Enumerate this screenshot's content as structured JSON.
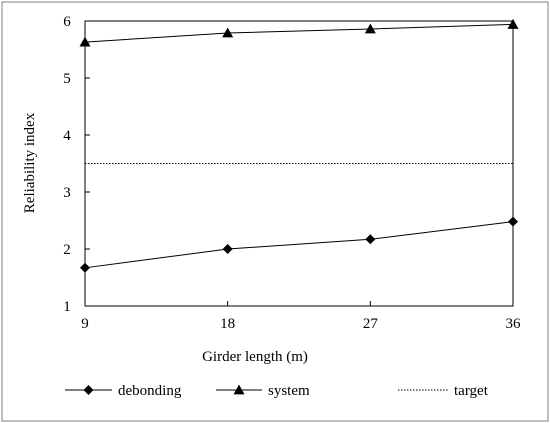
{
  "chart_data": {
    "type": "line",
    "title": "",
    "xlabel": "Girder length (m)",
    "ylabel": "Reliability index",
    "x": [
      9,
      18,
      27,
      36
    ],
    "x_tick_labels": [
      "9",
      "18",
      "27",
      "36"
    ],
    "xlim": [
      9,
      36
    ],
    "ylim": [
      1,
      6
    ],
    "y_ticks": [
      1,
      2,
      3,
      4,
      5,
      6
    ],
    "y_tick_labels": [
      "1",
      "2",
      "3",
      "4",
      "5",
      "6"
    ],
    "grid": false,
    "legend_position": "bottom",
    "series": [
      {
        "name": "debonding",
        "values": [
          1.67,
          2.0,
          2.17,
          2.48
        ],
        "marker": "diamond",
        "line_style": "solid",
        "color": "#000000"
      },
      {
        "name": "system",
        "values": [
          5.63,
          5.79,
          5.86,
          5.94
        ],
        "marker": "triangle",
        "line_style": "solid",
        "color": "#000000"
      },
      {
        "name": "target",
        "values": [
          3.5,
          3.5,
          3.5,
          3.5
        ],
        "marker": "none",
        "line_style": "dotted",
        "color": "#000000"
      }
    ]
  }
}
